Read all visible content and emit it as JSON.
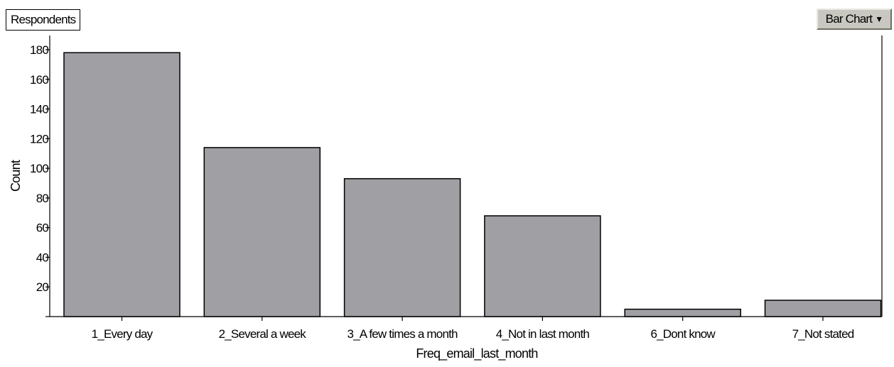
{
  "header": {
    "tag_label": "Respondents",
    "chart_type_label": "Bar Chart",
    "chart_type_icon": "caret-down-icon"
  },
  "chart_data": {
    "type": "bar",
    "categories": [
      "1_Every day",
      "2_Several a week",
      "3_A few times a month",
      "4_Not in last month",
      "6_Dont know",
      "7_Not stated"
    ],
    "values": [
      178,
      114,
      93,
      68,
      5,
      11
    ],
    "xlabel": "Freq_email_last_month",
    "ylabel": "Count",
    "ylim": [
      0,
      180
    ],
    "yticks": [
      20,
      40,
      60,
      80,
      100,
      120,
      140,
      160,
      180
    ],
    "grid": false,
    "bar_color": "#a09fa4",
    "bar_edge_color": "#000000"
  }
}
